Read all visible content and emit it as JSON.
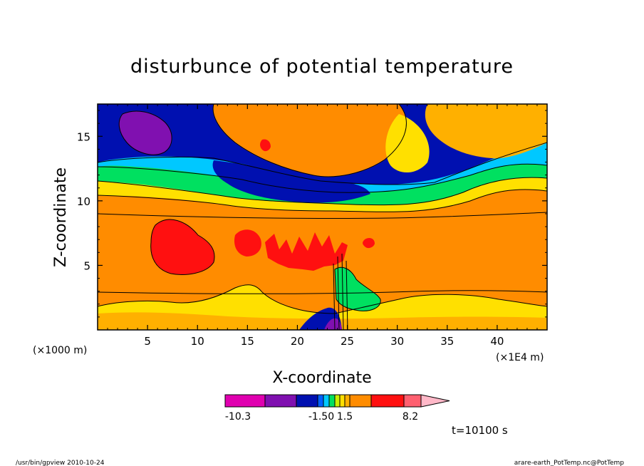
{
  "chart_data": {
    "type": "heatmap",
    "title": "disturbunce of potential temperature",
    "xlabel": "X-coordinate",
    "ylabel": "Z-coordinate",
    "x_unit": "(×1E4 m)",
    "y_unit": "(×1000 m)",
    "xlim": [
      0,
      45
    ],
    "ylim": [
      0,
      17.5
    ],
    "x_ticks": [
      5,
      10,
      15,
      20,
      25,
      30,
      35,
      40
    ],
    "x_tick_labels": [
      "5",
      "10",
      "15",
      "20",
      "25",
      "30",
      "35",
      "40"
    ],
    "y_ticks": [
      5,
      10,
      15
    ],
    "y_tick_labels": [
      "5",
      "10",
      "15"
    ],
    "colorbar": {
      "colors": [
        "#e000b0",
        "#8010b0",
        "#0010b0",
        "#0060ff",
        "#00c8ff",
        "#00e060",
        "#c8f000",
        "#ffe000",
        "#ffb000",
        "#ff8c00",
        "#ff1010",
        "#ff6070",
        "#ffb8c8"
      ],
      "labels": [
        "-10.3",
        "-1.50",
        "1.5",
        "8.2"
      ]
    },
    "time_label": "t=10100 s",
    "layers": [
      {
        "z_top": 17.5,
        "z_bottom": 14.2,
        "value_range": "-10.3 to -1.50",
        "color": "#0010b0"
      },
      {
        "z_top": 14.2,
        "z_bottom": 11.0,
        "value_range": "-1.50 to 1.5",
        "color": "#c8f000"
      },
      {
        "z_top": 11.0,
        "z_bottom": 2.5,
        "value_range": "1.5 to 8.2",
        "color": "#ff8c00"
      },
      {
        "z_top": 2.5,
        "z_bottom": 0.0,
        "value_range": "-1.50 to 1.5",
        "color": "#ffe000"
      }
    ]
  },
  "footer": {
    "left": "/usr/bin/gpview   2010-10-24",
    "right": "arare-earth_PotTemp.nc@PotTemp"
  }
}
